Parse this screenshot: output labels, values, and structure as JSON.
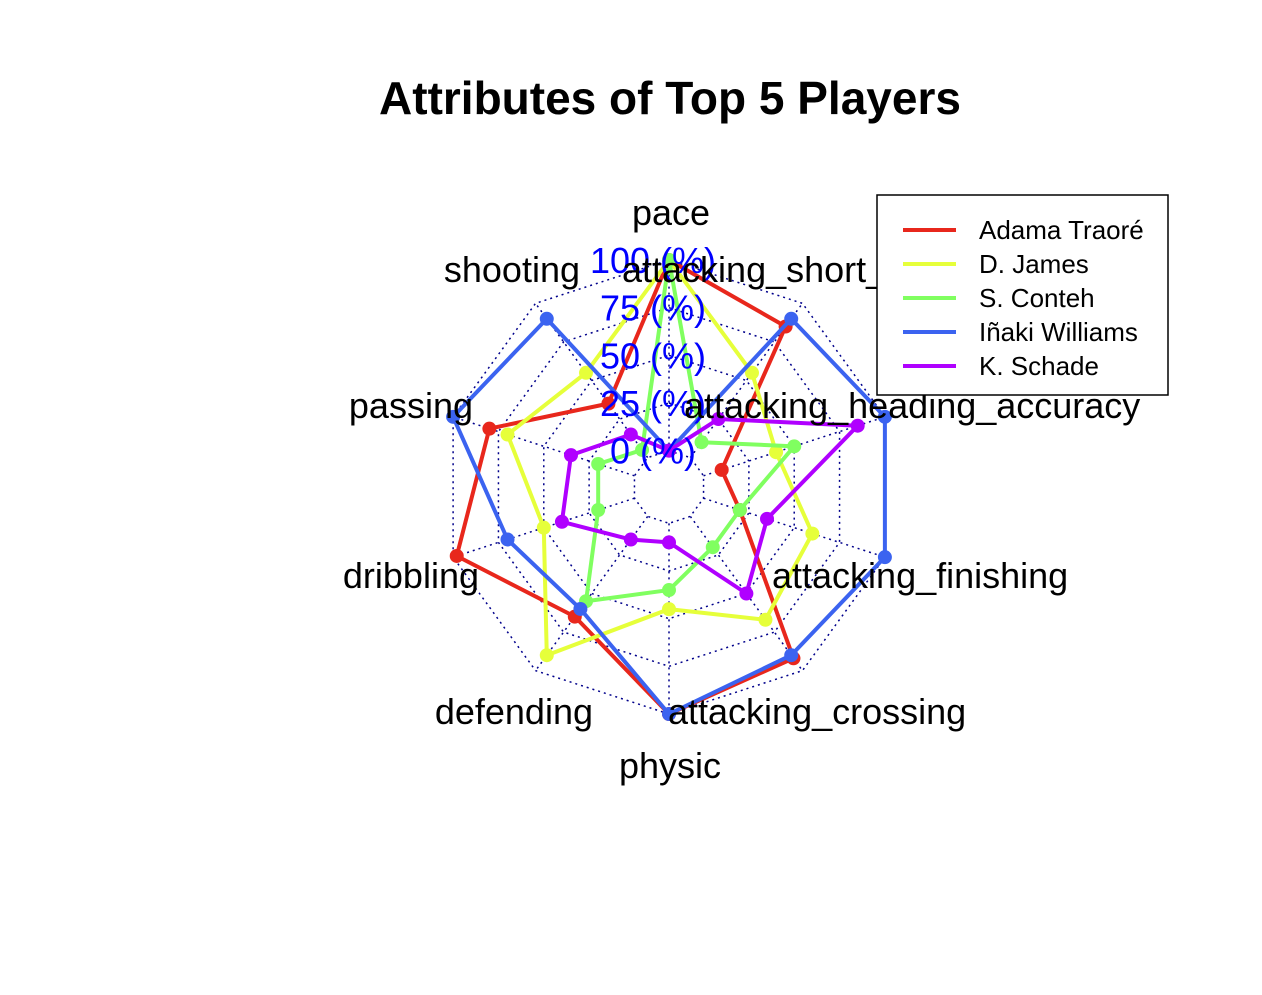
{
  "chart_data": {
    "type": "radar",
    "title": "Attributes of Top 5 Players",
    "axes": [
      "pace",
      "attacking_short_passing",
      "attacking_heading_accuracy",
      "attacking_finishing",
      "attacking_crossing",
      "physic",
      "defending",
      "dribbling",
      "passing",
      "shooting"
    ],
    "tick_labels": [
      "0 (%)",
      "25 (%)",
      "50 (%)",
      "75 (%)",
      "100 (%)"
    ],
    "tick_color": "#0000ff",
    "grid": "dotted",
    "grid_color": "#00008b",
    "legend_position": "top-right",
    "range": [
      0,
      100
    ],
    "series": [
      {
        "name": "Adama Traoré",
        "color": "#e8271c",
        "values": [
          100,
          85,
          10,
          20,
          92,
          100,
          65,
          98,
          80,
          35
        ]
      },
      {
        "name": "D. James",
        "color": "#e6ff3a",
        "values": [
          100,
          55,
          40,
          60,
          67,
          45,
          90,
          50,
          70,
          55
        ]
      },
      {
        "name": "S. Conteh",
        "color": "#80ff60",
        "values": [
          100,
          10,
          50,
          20,
          20,
          35,
          55,
          20,
          20,
          5
        ]
      },
      {
        "name": "Iñaki Williams",
        "color": "#3b63f0",
        "values": [
          0,
          90,
          100,
          100,
          90,
          100,
          60,
          70,
          100,
          90
        ]
      },
      {
        "name": "K. Schade",
        "color": "#b000ff",
        "values": [
          0,
          25,
          85,
          35,
          50,
          10,
          15,
          40,
          35,
          15
        ]
      }
    ]
  }
}
